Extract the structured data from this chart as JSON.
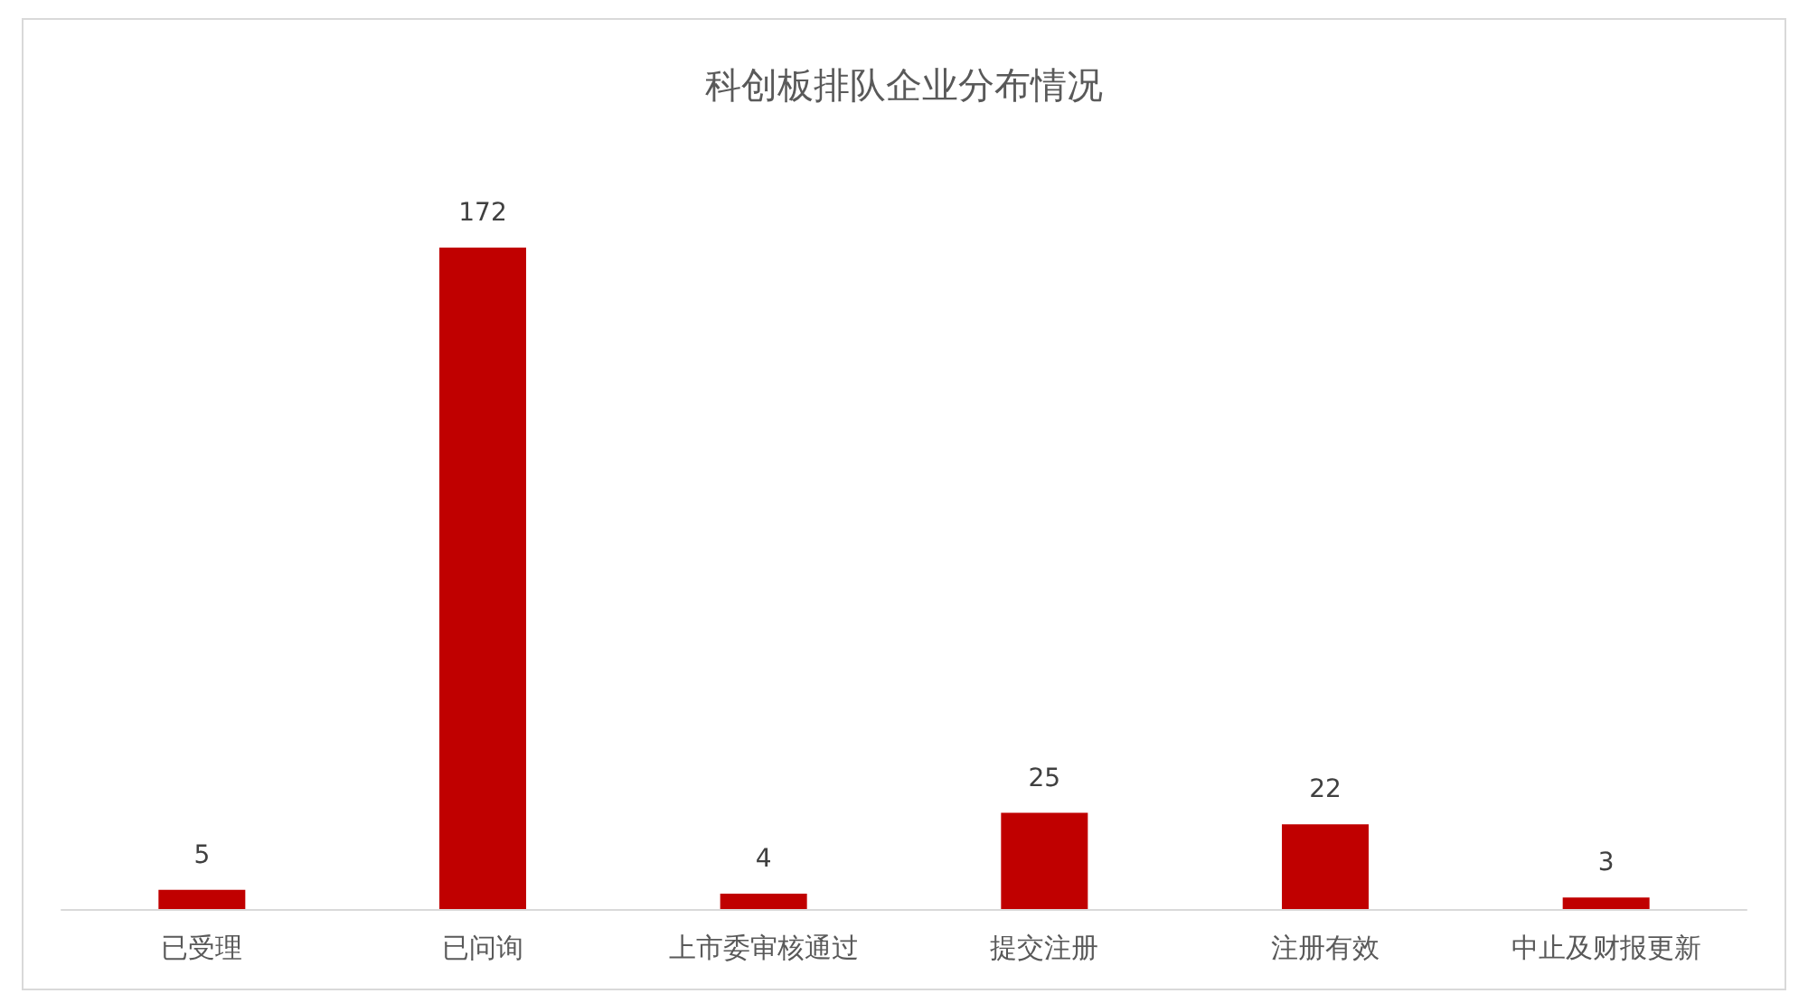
{
  "chart_data": {
    "type": "bar",
    "title": "科创板排队企业分布情况",
    "categories": [
      "已受理",
      "已问询",
      "上市委审核通过",
      "提交注册",
      "注册有效",
      "中止及财报更新"
    ],
    "values": [
      5,
      172,
      4,
      25,
      22,
      3
    ],
    "color": "#c00000",
    "data_labels": true
  }
}
